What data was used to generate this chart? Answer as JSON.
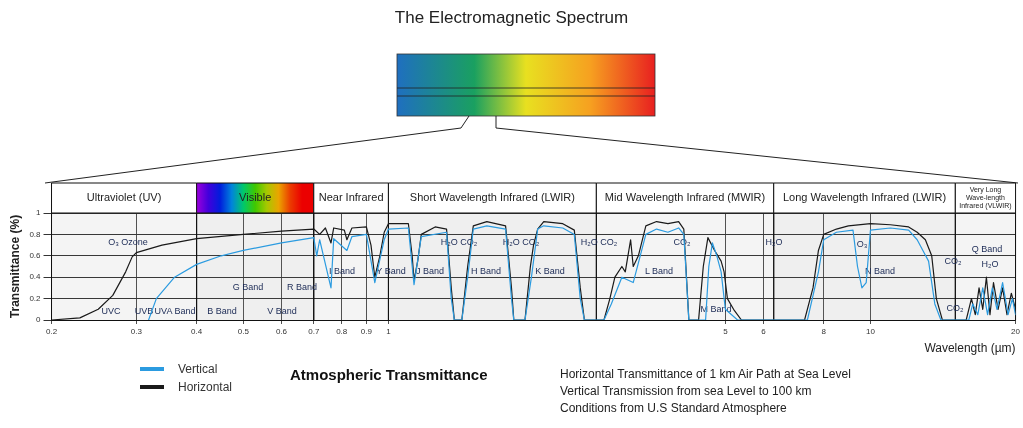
{
  "chart_data": {
    "type": "line",
    "title": "The Electromagnetic Spectrum",
    "subtitle": "Atmospheric Transmittance",
    "xlabel": "Wavelength (µm)",
    "ylabel": "Transmittance (%)",
    "log": "x",
    "grid": true,
    "legend": "bottom left",
    "marker": "none",
    "line_style": "solid",
    "xlim": [
      0.2,
      20
    ],
    "xticks": [
      0.2,
      0.3,
      0.4,
      0.5,
      0.6,
      0.7,
      0.8,
      0.9,
      1,
      5,
      6,
      8,
      10,
      20
    ],
    "ylim": [
      0,
      1
    ],
    "yticks": [
      0,
      0.2,
      0.4,
      0.6,
      0.8,
      1
    ],
    "series": [
      {
        "name": "Vertical",
        "color": "#2b9be0",
        "x": [
          0.318,
          0.33,
          0.36,
          0.4,
          0.45,
          0.5,
          0.6,
          0.7,
          0.71,
          0.72,
          0.76,
          0.77,
          0.82,
          0.84,
          0.9,
          0.937,
          0.98,
          1.0,
          1.1,
          1.13,
          1.17,
          1.32,
          1.35,
          1.37,
          1.42,
          1.46,
          1.5,
          1.6,
          1.75,
          1.8,
          1.82,
          1.92,
          1.98,
          2.04,
          2.1,
          2.3,
          2.43,
          2.5,
          2.55,
          2.8,
          2.9,
          3.05,
          3.22,
          3.42,
          3.6,
          3.8,
          4.0,
          4.1,
          4.2,
          4.55,
          4.62,
          4.7,
          4.8,
          4.9,
          5.0,
          5.3,
          7.4,
          7.8,
          8.0,
          8.5,
          9.2,
          9.4,
          9.6,
          9.8,
          10,
          11,
          12,
          12.5,
          13.2,
          13.6,
          14,
          16,
          16.3,
          16.7,
          17.1,
          17.5,
          17.9,
          18.3,
          18.8,
          19.3,
          19.7,
          20
        ],
        "values": [
          0,
          0.2,
          0.4,
          0.52,
          0.6,
          0.65,
          0.72,
          0.77,
          0.6,
          0.75,
          0.3,
          0.76,
          0.65,
          0.78,
          0.8,
          0.35,
          0.75,
          0.85,
          0.86,
          0.33,
          0.78,
          0.82,
          0.2,
          0,
          0,
          0.4,
          0.85,
          0.88,
          0.85,
          0.2,
          0,
          0,
          0.4,
          0.85,
          0.88,
          0.86,
          0.8,
          0.2,
          0,
          0,
          0.15,
          0.4,
          0.35,
          0.8,
          0.85,
          0.82,
          0.86,
          0.8,
          0,
          0,
          0.5,
          0.72,
          0.6,
          0.45,
          0.1,
          0,
          0,
          0.45,
          0.75,
          0.82,
          0.84,
          0.5,
          0.3,
          0.35,
          0.84,
          0.86,
          0.84,
          0.75,
          0.55,
          0.15,
          0,
          0,
          0.15,
          0.05,
          0.3,
          0.05,
          0.3,
          0.1,
          0.35,
          0.05,
          0.2,
          0.05
        ]
      },
      {
        "name": "Horizontal",
        "color": "#1a1a1a",
        "x": [
          0.2,
          0.229,
          0.25,
          0.268,
          0.285,
          0.294,
          0.3,
          0.339,
          0.4,
          0.5,
          0.6,
          0.7,
          0.72,
          0.74,
          0.76,
          0.77,
          0.81,
          0.82,
          0.84,
          0.9,
          0.92,
          0.937,
          0.96,
          0.98,
          1.0,
          1.1,
          1.12,
          1.13,
          1.15,
          1.17,
          1.25,
          1.32,
          1.35,
          1.37,
          1.42,
          1.46,
          1.5,
          1.6,
          1.75,
          1.8,
          1.82,
          1.92,
          1.97,
          2.0,
          2.04,
          2.1,
          2.3,
          2.43,
          2.5,
          2.55,
          2.8,
          2.88,
          2.95,
          3.05,
          3.1,
          3.18,
          3.22,
          3.3,
          3.42,
          3.6,
          3.8,
          4.0,
          4.1,
          4.2,
          4.4,
          4.5,
          4.6,
          4.75,
          4.9,
          4.97,
          5.05,
          5.2,
          5.4,
          7.3,
          7.6,
          7.8,
          8.0,
          8.5,
          9.0,
          10,
          11,
          12,
          12.5,
          13,
          13.4,
          13.7,
          14.1,
          15.8,
          16.2,
          16.5,
          16.8,
          17.1,
          17.4,
          17.7,
          18,
          18.4,
          18.8,
          19.2,
          19.6,
          20
        ],
        "values": [
          0,
          0.02,
          0.1,
          0.23,
          0.45,
          0.59,
          0.63,
          0.7,
          0.76,
          0.8,
          0.83,
          0.85,
          0.8,
          0.86,
          0.72,
          0.86,
          0.84,
          0.75,
          0.86,
          0.87,
          0.7,
          0.4,
          0.6,
          0.82,
          0.9,
          0.9,
          0.6,
          0.37,
          0.55,
          0.8,
          0.87,
          0.85,
          0.3,
          0,
          0,
          0.5,
          0.88,
          0.92,
          0.88,
          0.3,
          0,
          0,
          0.5,
          0.7,
          0.85,
          0.92,
          0.9,
          0.84,
          0.3,
          0,
          0,
          0.2,
          0.4,
          0.5,
          0.45,
          0.75,
          0.5,
          0.6,
          0.88,
          0.92,
          0.9,
          0.92,
          0.85,
          0,
          0,
          0.5,
          0.77,
          0.65,
          0.55,
          0.45,
          0.2,
          0.1,
          0,
          0,
          0.3,
          0.65,
          0.8,
          0.85,
          0.88,
          0.9,
          0.89,
          0.87,
          0.82,
          0.75,
          0.6,
          0.2,
          0,
          0,
          0.2,
          0.05,
          0.3,
          0.1,
          0.4,
          0.05,
          0.35,
          0.1,
          0.3,
          0.05,
          0.25,
          0.1
        ]
      }
    ],
    "bands": [
      {
        "axis": "x",
        "from": 0.2,
        "to": 0.4,
        "label": "Ultraviolet (UV)"
      },
      {
        "axis": "x",
        "from": 0.4,
        "to": 0.7,
        "label": "Visible"
      },
      {
        "axis": "x",
        "from": 0.7,
        "to": 1,
        "label": "Near Infrared"
      },
      {
        "axis": "x",
        "from": 1,
        "to": 2.7,
        "label": "Short Wavelength Infrared (LWIR)"
      },
      {
        "axis": "x",
        "from": 2.7,
        "to": 6.3,
        "label": "Mid Wavelength Infrared (MWIR)"
      },
      {
        "axis": "x",
        "from": 6.3,
        "to": 15,
        "label": "Long Wavelength Infrared (LWIR)"
      },
      {
        "axis": "x",
        "from": 15,
        "to": 20,
        "label": "Very Long Wave-length Infrared (VLWIR)"
      }
    ],
    "annotations": [
      "UVC",
      "UVB",
      "UVA Band",
      "B Band",
      "V Band",
      "G Band",
      "R Band",
      "I Band",
      "Y Band",
      "J Band",
      "H Band",
      "K Band",
      "L Band",
      "M Band",
      "N Band",
      "Q Band",
      "O₃ Ozone",
      "H₂O CO₂",
      "H₂O CO₂",
      "H₂O CO₂",
      "CO₂",
      "H₂O",
      "O₃",
      "CO₂",
      "CO₂",
      "H₂O",
      "Horizontal Transmittance of 1 km Air Path at Sea Level",
      "Vertical Transmission from sea Level to 100 km",
      "Conditions from U.S Standard Atmosphere"
    ]
  }
}
